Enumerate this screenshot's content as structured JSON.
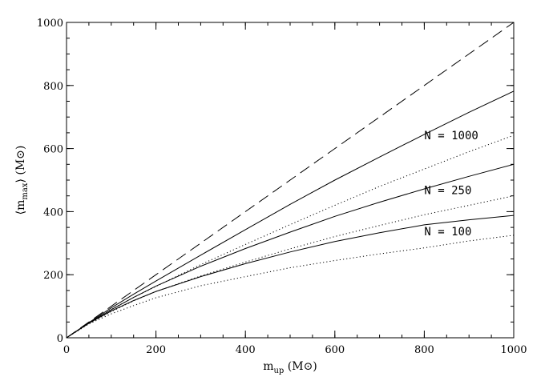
{
  "chart_data": {
    "type": "line",
    "title": "",
    "xlabel": {
      "main": "m",
      "sub": "up",
      "unit": " (M⊙)"
    },
    "ylabel": {
      "main": "⟨m",
      "sub": "max",
      "close": "⟩",
      "unit": " (M⊙)"
    },
    "xlim": [
      0,
      1000
    ],
    "ylim": [
      0,
      1000
    ],
    "xticks": [
      "0",
      "200",
      "400",
      "600",
      "800",
      "1000"
    ],
    "yticks": [
      "0",
      "200",
      "400",
      "600",
      "800",
      "1000"
    ],
    "grid": false,
    "x": [
      0,
      50,
      100,
      150,
      200,
      300,
      400,
      500,
      600,
      700,
      800,
      900,
      1000
    ],
    "series": [
      {
        "style": "dashed",
        "values": [
          0,
          50,
          100,
          150,
          200,
          300,
          400,
          500,
          600,
          700,
          800,
          900,
          1000
        ]
      },
      {
        "style": "solid",
        "values": [
          0,
          48,
          95,
          138,
          180,
          262,
          343,
          423,
          500,
          573,
          645,
          715,
          782
        ]
      },
      {
        "style": "dotted",
        "values": [
          0,
          47,
          90,
          128,
          163,
          232,
          296,
          359,
          420,
          480,
          535,
          590,
          642
        ]
      },
      {
        "style": "solid",
        "values": [
          0,
          47,
          89,
          128,
          164,
          227,
          283,
          335,
          385,
          430,
          472,
          512,
          550
        ]
      },
      {
        "style": "dotted",
        "values": [
          0,
          45,
          83,
          117,
          147,
          196,
          240,
          282,
          321,
          356,
          390,
          420,
          450
        ]
      },
      {
        "style": "solid",
        "values": [
          0,
          46,
          85,
          118,
          147,
          194,
          235,
          272,
          305,
          333,
          358,
          374,
          388
        ]
      },
      {
        "style": "dotted",
        "values": [
          0,
          44,
          76,
          102,
          127,
          165,
          194,
          222,
          245,
          266,
          285,
          307,
          325
        ]
      }
    ],
    "annotations": [
      {
        "text": "N = 1000",
        "x": 800,
        "y": 630
      },
      {
        "text": "N = 250",
        "x": 800,
        "y": 456
      },
      {
        "text": "N = 100",
        "x": 800,
        "y": 325
      }
    ]
  }
}
